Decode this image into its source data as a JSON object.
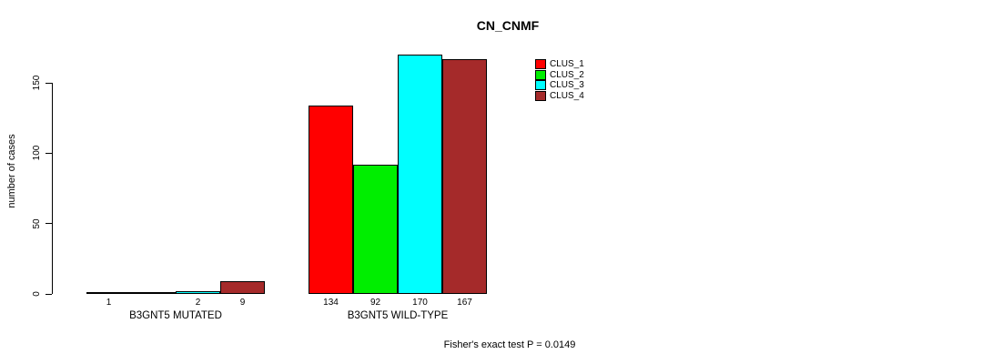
{
  "chart_data": {
    "type": "bar",
    "title": "CN_CNMF",
    "ylabel": "number of cases",
    "xlabel": "",
    "ylim": [
      0,
      170
    ],
    "yticks": [
      0,
      50,
      100,
      150
    ],
    "grid": false,
    "legend_position": "top-right",
    "legend": [
      {
        "name": "CLUS_1",
        "color": "#FF0000"
      },
      {
        "name": "CLUS_2",
        "color": "#00EE00"
      },
      {
        "name": "CLUS_3",
        "color": "#00FFFF"
      },
      {
        "name": "CLUS_4",
        "color": "#A52A2A"
      }
    ],
    "categories": [
      "B3GNT5 MUTATED",
      "B3GNT5 WILD-TYPE"
    ],
    "groups": [
      {
        "label": "B3GNT5 MUTATED",
        "values": [
          1,
          0,
          2,
          9
        ],
        "value_labels": [
          "1",
          "",
          "2",
          "9"
        ]
      },
      {
        "label": "B3GNT5 WILD-TYPE",
        "values": [
          134,
          92,
          170,
          167
        ],
        "value_labels": [
          "134",
          "92",
          "170",
          "167"
        ]
      }
    ],
    "annotation": "Fisher's exact test P = 0.0149"
  }
}
